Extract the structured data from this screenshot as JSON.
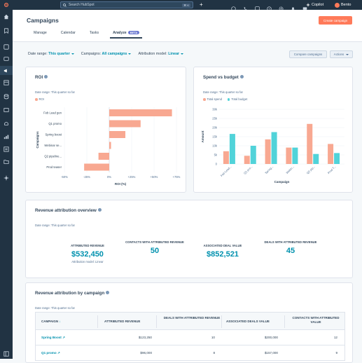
{
  "topbar": {
    "search_placeholder": "Search HubSpot",
    "search_shortcut": "⌘ K",
    "copilot_label": "Copilot",
    "account_name": "Bento"
  },
  "header": {
    "title": "Campaigns",
    "create_label": "Create campaign",
    "tabs": [
      {
        "label": "Manage"
      },
      {
        "label": "Calendar"
      },
      {
        "label": "Tasks"
      },
      {
        "label": "Analyze"
      }
    ],
    "beta_badge": "BETA"
  },
  "filters": {
    "date_range_label": "Date range:",
    "date_range_value": "This quarter",
    "campaigns_label": "Campaigns:",
    "campaigns_value": "All campaigns",
    "attribution_label": "Attribution model:",
    "attribution_value": "Linear",
    "compare_label": "Compare campaigns",
    "actions_label": "Actions"
  },
  "roi_card": {
    "title": "ROI",
    "date_note": "Date range: This quarter so far",
    "legend": "ROI"
  },
  "spend_card": {
    "title": "Spend vs budget",
    "date_note": "Date range: This quarter so far",
    "legend_spend": "Total spend",
    "legend_budget": "Total budget"
  },
  "overview_card": {
    "title": "Revenue attribution overview",
    "date_note": "Date range: This quarter so far",
    "metrics": [
      {
        "label": "ATTRIBUTED REVENUE",
        "value": "$532,450",
        "sub": "Attribution model: Linear"
      },
      {
        "label": "CONTACTS WITH ATTRIBUTED REVENUE",
        "value": "50",
        "sub": ""
      },
      {
        "label": "ASSOCIATED DEAL VALUE",
        "value": "$852,521",
        "sub": ""
      },
      {
        "label": "DEALS WITH ATTRIBUTED REVENUE",
        "value": "45",
        "sub": ""
      }
    ]
  },
  "bycampaign_card": {
    "title": "Revenue attribution by campaign",
    "date_note": "Date range: This quarter so far",
    "columns": [
      "CAMPAIGN",
      "ATTRIBUTED REVENUE",
      "DEALS WITH ATTRIBUTED REVENUE",
      "ASSOCIATED DEALS VALUE",
      "CONTACTS WITH ATTRIBUTED VALUE"
    ],
    "rows": [
      {
        "campaign": "Spring Boost",
        "revenue": "$123,250",
        "deals": "10",
        "deal_value": "$200,000",
        "contacts": "12"
      },
      {
        "campaign": "Q1 promo",
        "revenue": "$96,000",
        "deals": "8",
        "deal_value": "$157,000",
        "contacts": "9"
      }
    ]
  },
  "chart_data": [
    {
      "type": "bar",
      "orientation": "horizontal",
      "categories": [
        "Feb Lead gen",
        "Q1 promo",
        "Spring boost",
        "Webinar se...",
        "Q2 pipeline...",
        "Prod teaser"
      ],
      "values": [
        70,
        35,
        18,
        2,
        -12,
        -28
      ],
      "xlabel": "ROI (%)",
      "ylabel": "Campaigns",
      "xticks": [
        "-50%",
        "-25%",
        "0%",
        "+25%",
        "+50%",
        "+75%"
      ],
      "xlim": [
        -50,
        75
      ],
      "series": [
        {
          "name": "ROI",
          "values": [
            70,
            35,
            18,
            2,
            -12,
            -28
          ],
          "color": "#f8a891"
        }
      ]
    },
    {
      "type": "bar",
      "categories": [
        "Feb Lead...",
        "Q1 pro...",
        "Spring...",
        "Webin...",
        "Q2 pip...",
        "Prod T..."
      ],
      "xlabel": "Campaign",
      "ylabel": "Amount",
      "ylim": [
        0,
        30000
      ],
      "yticks": [
        "0",
        "5k",
        "10k",
        "15k",
        "20k",
        "25k",
        "30k"
      ],
      "series": [
        {
          "name": "Total spend",
          "color": "#f8a891",
          "values": [
            7000,
            4500,
            13500,
            9000,
            22000,
            11000
          ]
        },
        {
          "name": "Total budget",
          "color": "#51d3d9",
          "values": [
            16500,
            10000,
            17500,
            9000,
            5500,
            6000
          ]
        }
      ]
    }
  ]
}
